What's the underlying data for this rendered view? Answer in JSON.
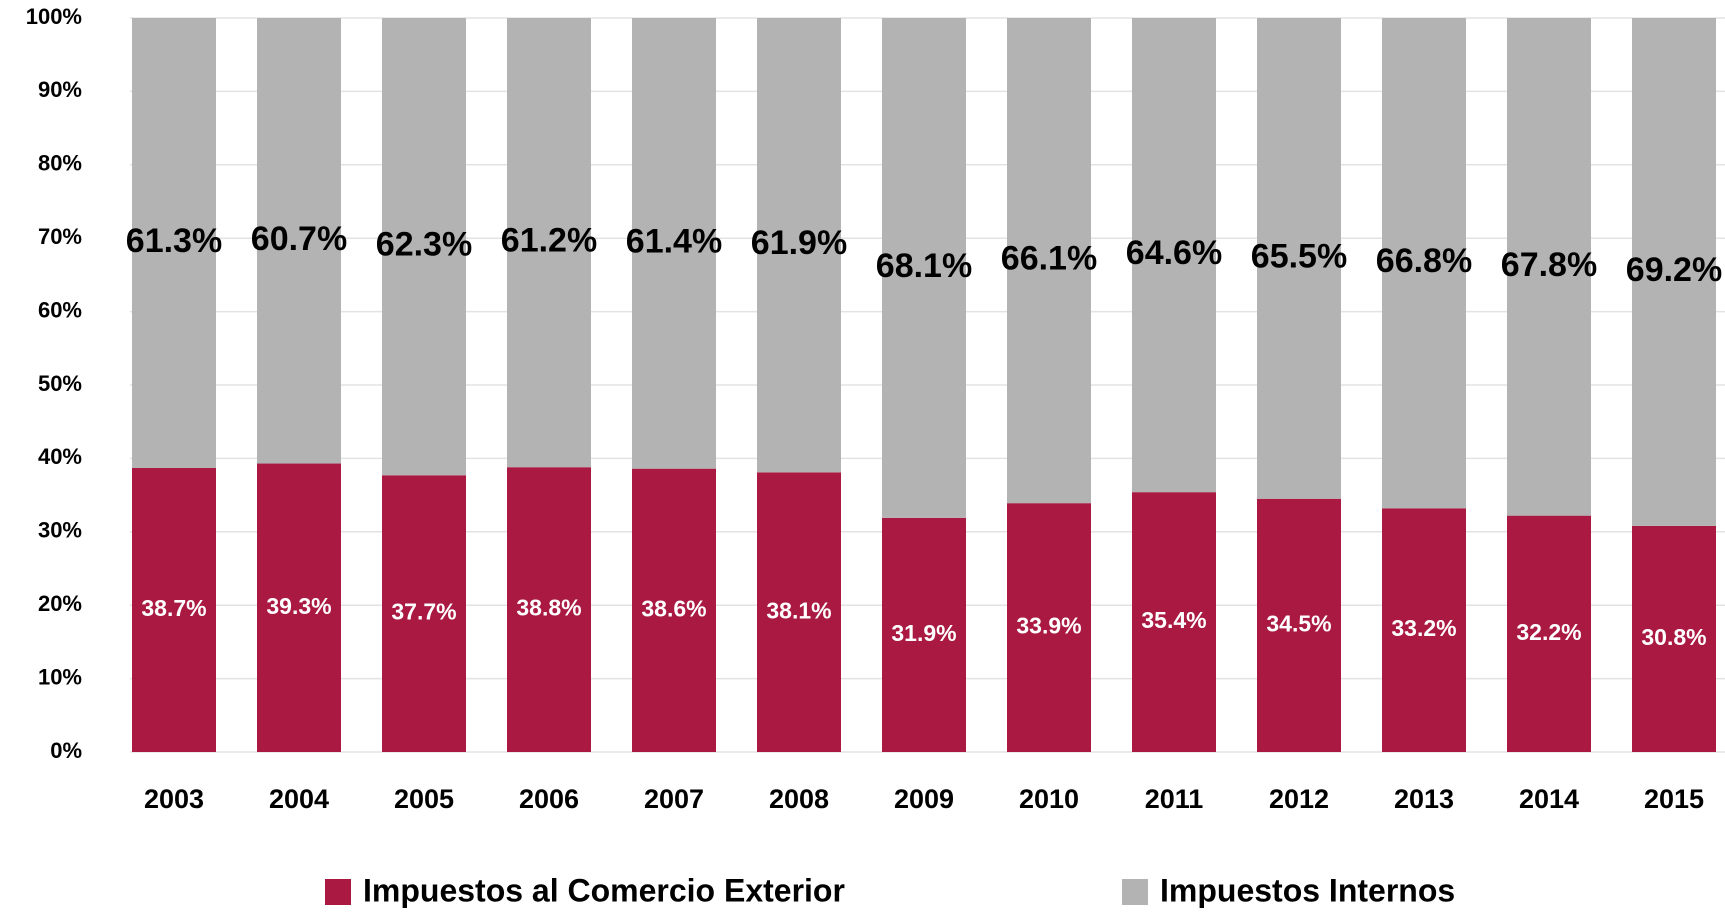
{
  "chart_data": {
    "type": "stacked_bar",
    "categories": [
      "2003",
      "2004",
      "2005",
      "2006",
      "2007",
      "2008",
      "2009",
      "2010",
      "2011",
      "2012",
      "2013",
      "2014",
      "2015"
    ],
    "series": [
      {
        "name": "Impuestos al Comercio Exterior",
        "color": "#a91942",
        "values": [
          38.7,
          39.3,
          37.7,
          38.8,
          38.6,
          38.1,
          31.9,
          33.9,
          35.4,
          34.5,
          33.2,
          32.2,
          30.8
        ],
        "value_labels": [
          "38.7%",
          "39.3%",
          "37.7%",
          "38.8%",
          "38.6%",
          "38.1%",
          "31.9%",
          "33.9%",
          "35.4%",
          "34.5%",
          "33.2%",
          "32.2%",
          "30.8%"
        ]
      },
      {
        "name": "Impuestos Internos",
        "color": "#b3b3b3",
        "values": [
          61.3,
          60.7,
          62.3,
          61.2,
          61.4,
          61.9,
          68.1,
          66.1,
          64.6,
          65.5,
          66.8,
          67.8,
          69.2
        ],
        "value_labels": [
          "61.3%",
          "60.7%",
          "62.3%",
          "61.2%",
          "61.4%",
          "61.9%",
          "68.1%",
          "66.1%",
          "64.6%",
          "65.5%",
          "66.8%",
          "67.8%",
          "69.2%"
        ]
      }
    ],
    "ylim": [
      0,
      100
    ],
    "yticks": [
      {
        "value": 0,
        "label": "0%"
      },
      {
        "value": 10,
        "label": "10%"
      },
      {
        "value": 20,
        "label": "20%"
      },
      {
        "value": 30,
        "label": "30%"
      },
      {
        "value": 40,
        "label": "40%"
      },
      {
        "value": 50,
        "label": "50%"
      },
      {
        "value": 60,
        "label": "60%"
      },
      {
        "value": 70,
        "label": "70%"
      },
      {
        "value": 80,
        "label": "80%"
      },
      {
        "value": 90,
        "label": "90%"
      },
      {
        "value": 100,
        "label": "100%"
      }
    ],
    "grid": true,
    "legend": "bottom"
  }
}
